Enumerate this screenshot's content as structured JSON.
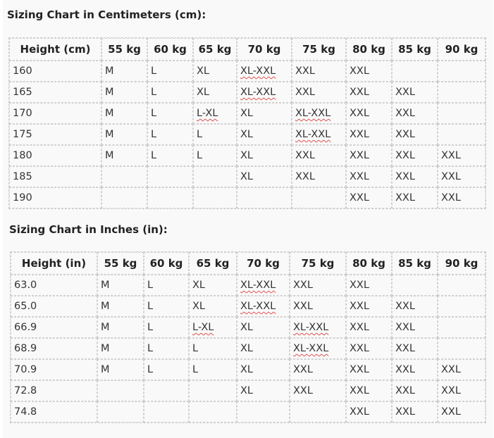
{
  "tables": [
    {
      "title": "Sizing Chart in Centimeters (cm):",
      "headers": [
        "Height (cm)",
        "55 kg",
        "60 kg",
        "65 kg",
        "70 kg",
        "75 kg",
        "80 kg",
        "85 kg",
        "90 kg"
      ],
      "rows": [
        [
          "160",
          "M",
          "L",
          "XL",
          "XL-XXL",
          "XXL",
          "XXL",
          "",
          ""
        ],
        [
          "165",
          "M",
          "L",
          "XL",
          "XL-XXL",
          "XXL",
          "XXL",
          "XXL",
          ""
        ],
        [
          "170",
          "M",
          "L",
          "L-XL",
          "XL",
          "XL-XXL",
          "XXL",
          "XXL",
          ""
        ],
        [
          "175",
          "M",
          "L",
          "L",
          "XL",
          "XL-XXL",
          "XXL",
          "XXL",
          ""
        ],
        [
          "180",
          "M",
          "L",
          "L",
          "XL",
          "XXL",
          "XXL",
          "XXL",
          "XXL"
        ],
        [
          "185",
          "",
          "",
          "",
          "XL",
          "XXL",
          "XXL",
          "XXL",
          "XXL"
        ],
        [
          "190",
          "",
          "",
          "",
          "",
          "",
          "XXL",
          "XXL",
          "XXL"
        ]
      ]
    },
    {
      "title": "Sizing Chart in Inches (in):",
      "headers": [
        "Height (in)",
        "55 kg",
        "60 kg",
        "65 kg",
        "70 kg",
        "75 kg",
        "80 kg",
        "85 kg",
        "90 kg"
      ],
      "rows": [
        [
          "63.0",
          "M",
          "L",
          "XL",
          "XL-XXL",
          "XXL",
          "XXL",
          "",
          ""
        ],
        [
          "65.0",
          "M",
          "L",
          "XL",
          "XL-XXL",
          "XXL",
          "XXL",
          "XXL",
          ""
        ],
        [
          "66.9",
          "M",
          "L",
          "L-XL",
          "XL",
          "XL-XXL",
          "XXL",
          "XXL",
          ""
        ],
        [
          "68.9",
          "M",
          "L",
          "L",
          "XL",
          "XL-XXL",
          "XXL",
          "XXL",
          ""
        ],
        [
          "70.9",
          "M",
          "L",
          "L",
          "XL",
          "XXL",
          "XXL",
          "XXL",
          "XXL"
        ],
        [
          "72.8",
          "",
          "",
          "",
          "XL",
          "XXL",
          "XXL",
          "XXL",
          "XXL"
        ],
        [
          "74.8",
          "",
          "",
          "",
          "",
          "",
          "XXL",
          "XXL",
          "XXL"
        ]
      ]
    }
  ]
}
